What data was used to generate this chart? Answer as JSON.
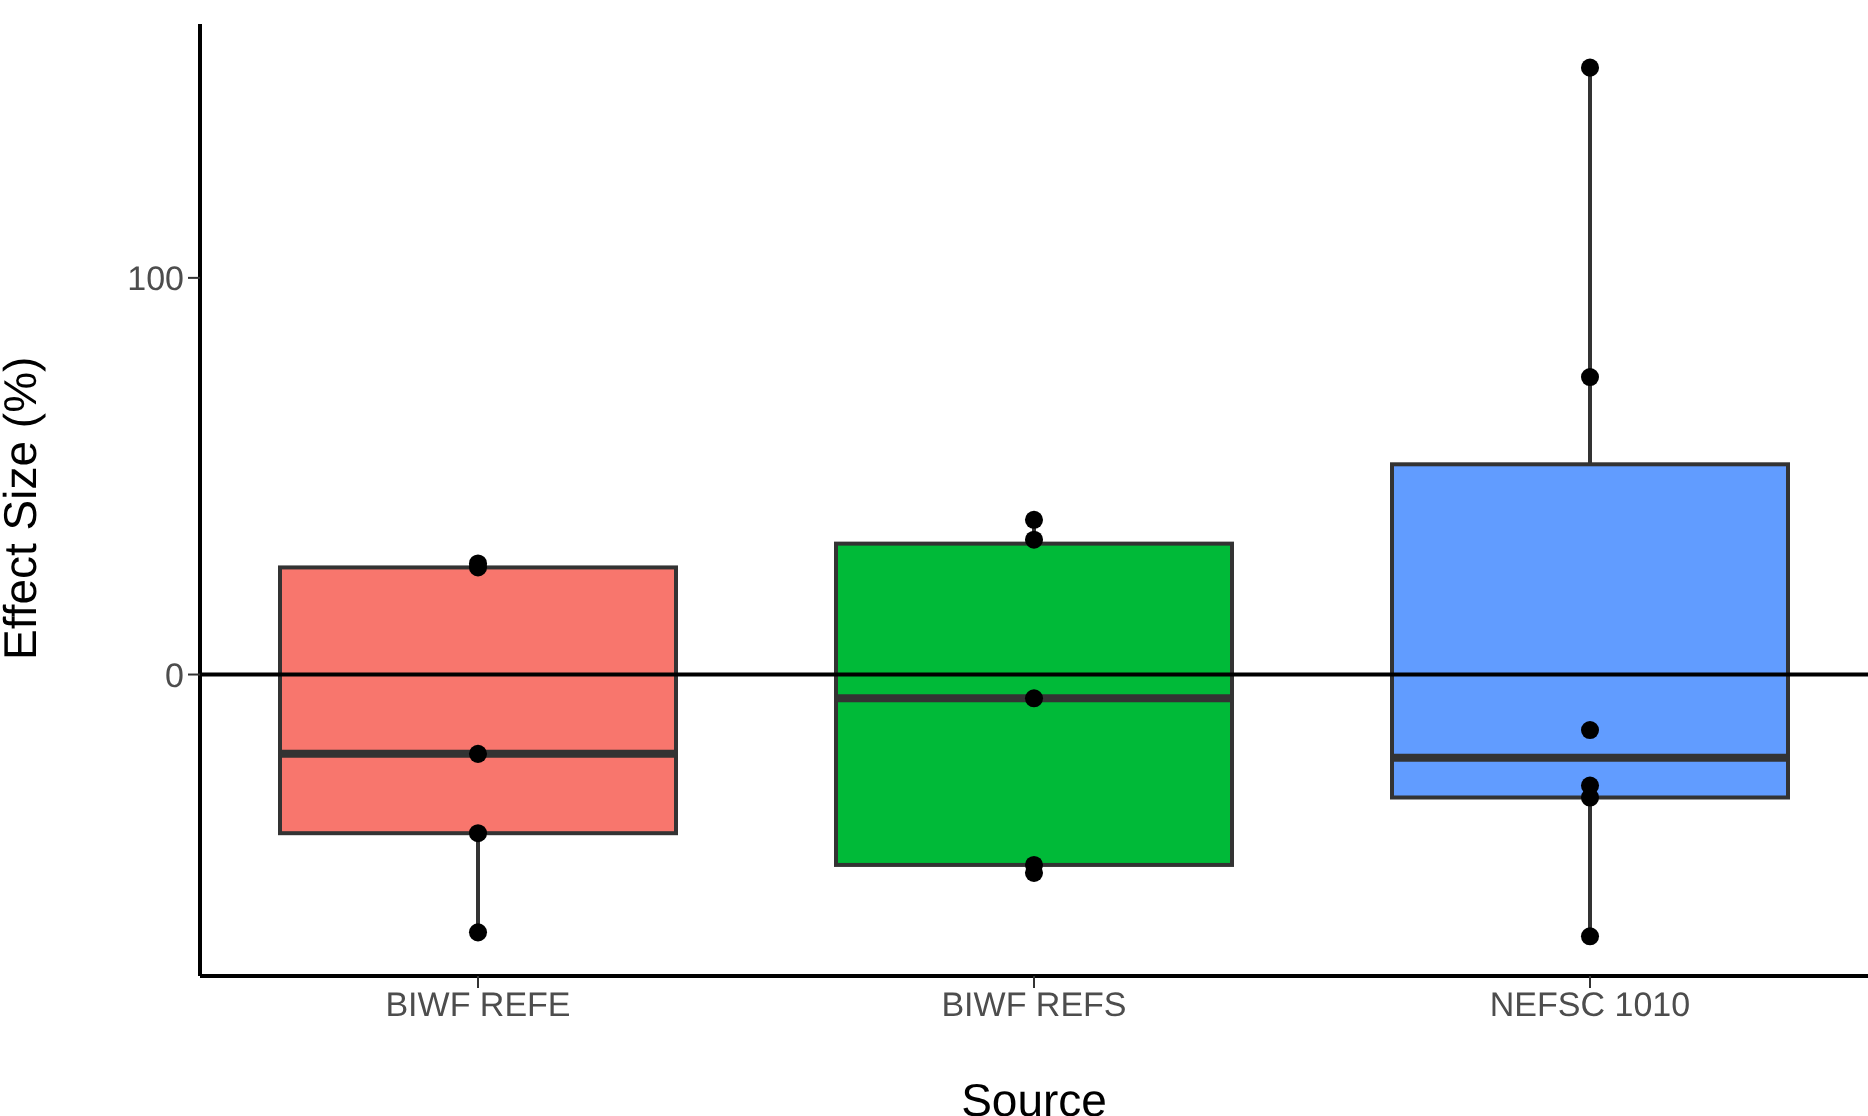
{
  "chart_data": {
    "type": "box",
    "xlabel": "Source",
    "ylabel": "Effect Size (%)",
    "categories": [
      "BIWF REFE",
      "BIWF REFS",
      "NEFSC 1010"
    ],
    "colors": [
      "#f8766d",
      "#00ba38",
      "#619cff"
    ],
    "boxes": [
      {
        "low": -65,
        "q1": -40,
        "median": -20,
        "q3": 27,
        "high": 28
      },
      {
        "low": -50,
        "q1": -48,
        "median": -6,
        "q3": 33,
        "high": 39
      },
      {
        "low": -66,
        "q1": -31,
        "median": -21,
        "q3": 53,
        "high": 153
      }
    ],
    "series": [
      {
        "type": "scatter",
        "color": "#000000",
        "x": [
          "BIWF REFE",
          "BIWF REFE",
          "BIWF REFE",
          "BIWF REFE",
          "BIWF REFE",
          "BIWF REFS",
          "BIWF REFS",
          "BIWF REFS",
          "BIWF REFS",
          "BIWF REFS",
          "NEFSC 1010",
          "NEFSC 1010",
          "NEFSC 1010",
          "NEFSC 1010",
          "NEFSC 1010",
          "NEFSC 1010"
        ],
        "values": [
          28,
          27,
          -20,
          -40,
          -65,
          39,
          34,
          -6,
          -48,
          -50,
          153,
          75,
          -14,
          -28,
          -31,
          -66
        ]
      }
    ],
    "ylim": [
      -76,
      164
    ],
    "yticks": [
      0,
      100
    ],
    "ref_lines": [
      {
        "axis": "y",
        "value": 0,
        "color": "#000000"
      }
    ]
  }
}
